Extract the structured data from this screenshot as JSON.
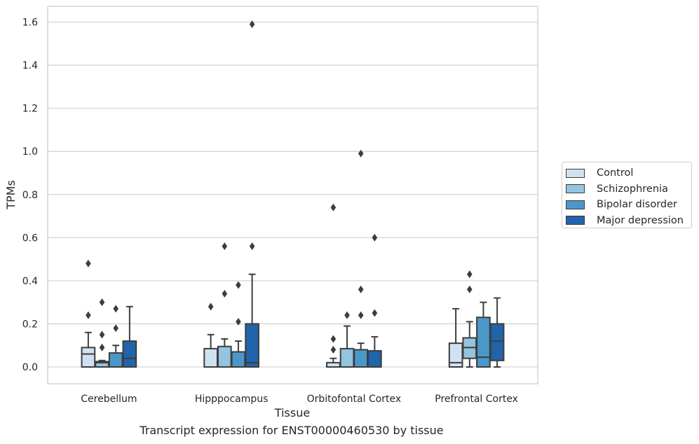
{
  "chart_data": {
    "type": "box",
    "title": "",
    "caption": "Transcript expression for ENST00000460530 by tissue",
    "xlabel": "Tissue",
    "ylabel": "TPMs",
    "ylim": [
      -0.08,
      1.67
    ],
    "yticks": [
      "0.0",
      "0.2",
      "0.4",
      "0.6",
      "0.8",
      "1.0",
      "1.2",
      "1.4",
      "1.6"
    ],
    "categories": [
      "Cerebellum",
      "Hipppocampus",
      "Orbitofontal Cortex",
      "Prefrontal Cortex"
    ],
    "grid": "horizontal",
    "legend_position": "right",
    "series": [
      {
        "name": "Control",
        "color": "#d0e1f2",
        "boxes": [
          {
            "whisker_low": 0.0,
            "q1": 0.0,
            "median": 0.06,
            "q3": 0.09,
            "whisker_high": 0.16,
            "outliers": [
              0.24,
              0.48
            ]
          },
          {
            "whisker_low": 0.0,
            "q1": 0.0,
            "median": 0.0,
            "q3": 0.085,
            "whisker_high": 0.15,
            "outliers": [
              0.28
            ]
          },
          {
            "whisker_low": 0.0,
            "q1": 0.0,
            "median": 0.0,
            "q3": 0.02,
            "whisker_high": 0.04,
            "outliers": [
              0.08,
              0.13,
              0.74
            ]
          },
          {
            "whisker_low": 0.0,
            "q1": 0.0,
            "median": 0.02,
            "q3": 0.11,
            "whisker_high": 0.27,
            "outliers": []
          }
        ]
      },
      {
        "name": "Schizophrenia",
        "color": "#94c4df",
        "boxes": [
          {
            "whisker_low": 0.0,
            "q1": 0.0,
            "median": 0.02,
            "q3": 0.025,
            "whisker_high": 0.03,
            "outliers": [
              0.09,
              0.15,
              0.3
            ]
          },
          {
            "whisker_low": 0.0,
            "q1": 0.0,
            "median": 0.0,
            "q3": 0.095,
            "whisker_high": 0.13,
            "outliers": [
              0.34,
              0.56
            ]
          },
          {
            "whisker_low": 0.0,
            "q1": 0.0,
            "median": 0.0,
            "q3": 0.085,
            "whisker_high": 0.19,
            "outliers": [
              0.24
            ]
          },
          {
            "whisker_low": 0.0,
            "q1": 0.04,
            "median": 0.09,
            "q3": 0.135,
            "whisker_high": 0.21,
            "outliers": [
              0.36,
              0.43
            ]
          }
        ]
      },
      {
        "name": "Bipolar disorder",
        "color": "#4a98c9",
        "boxes": [
          {
            "whisker_low": 0.0,
            "q1": 0.0,
            "median": 0.0,
            "q3": 0.065,
            "whisker_high": 0.1,
            "outliers": [
              0.18,
              0.27
            ]
          },
          {
            "whisker_low": 0.0,
            "q1": 0.0,
            "median": 0.0,
            "q3": 0.07,
            "whisker_high": 0.12,
            "outliers": [
              0.21,
              0.38
            ]
          },
          {
            "whisker_low": 0.0,
            "q1": 0.0,
            "median": 0.0,
            "q3": 0.08,
            "whisker_high": 0.11,
            "outliers": [
              0.24,
              0.36,
              0.99
            ]
          },
          {
            "whisker_low": 0.0,
            "q1": 0.0,
            "median": 0.045,
            "q3": 0.23,
            "whisker_high": 0.3,
            "outliers": []
          }
        ]
      },
      {
        "name": "Major depression",
        "color": "#2164ab",
        "boxes": [
          {
            "whisker_low": 0.0,
            "q1": 0.0,
            "median": 0.04,
            "q3": 0.12,
            "whisker_high": 0.28,
            "outliers": []
          },
          {
            "whisker_low": 0.0,
            "q1": 0.0,
            "median": 0.02,
            "q3": 0.2,
            "whisker_high": 0.43,
            "outliers": [
              0.56,
              1.59
            ]
          },
          {
            "whisker_low": 0.0,
            "q1": 0.0,
            "median": 0.0,
            "q3": 0.075,
            "whisker_high": 0.14,
            "outliers": [
              0.25,
              0.6
            ]
          },
          {
            "whisker_low": 0.0,
            "q1": 0.03,
            "median": 0.12,
            "q3": 0.2,
            "whisker_high": 0.32,
            "outliers": []
          }
        ]
      }
    ]
  }
}
